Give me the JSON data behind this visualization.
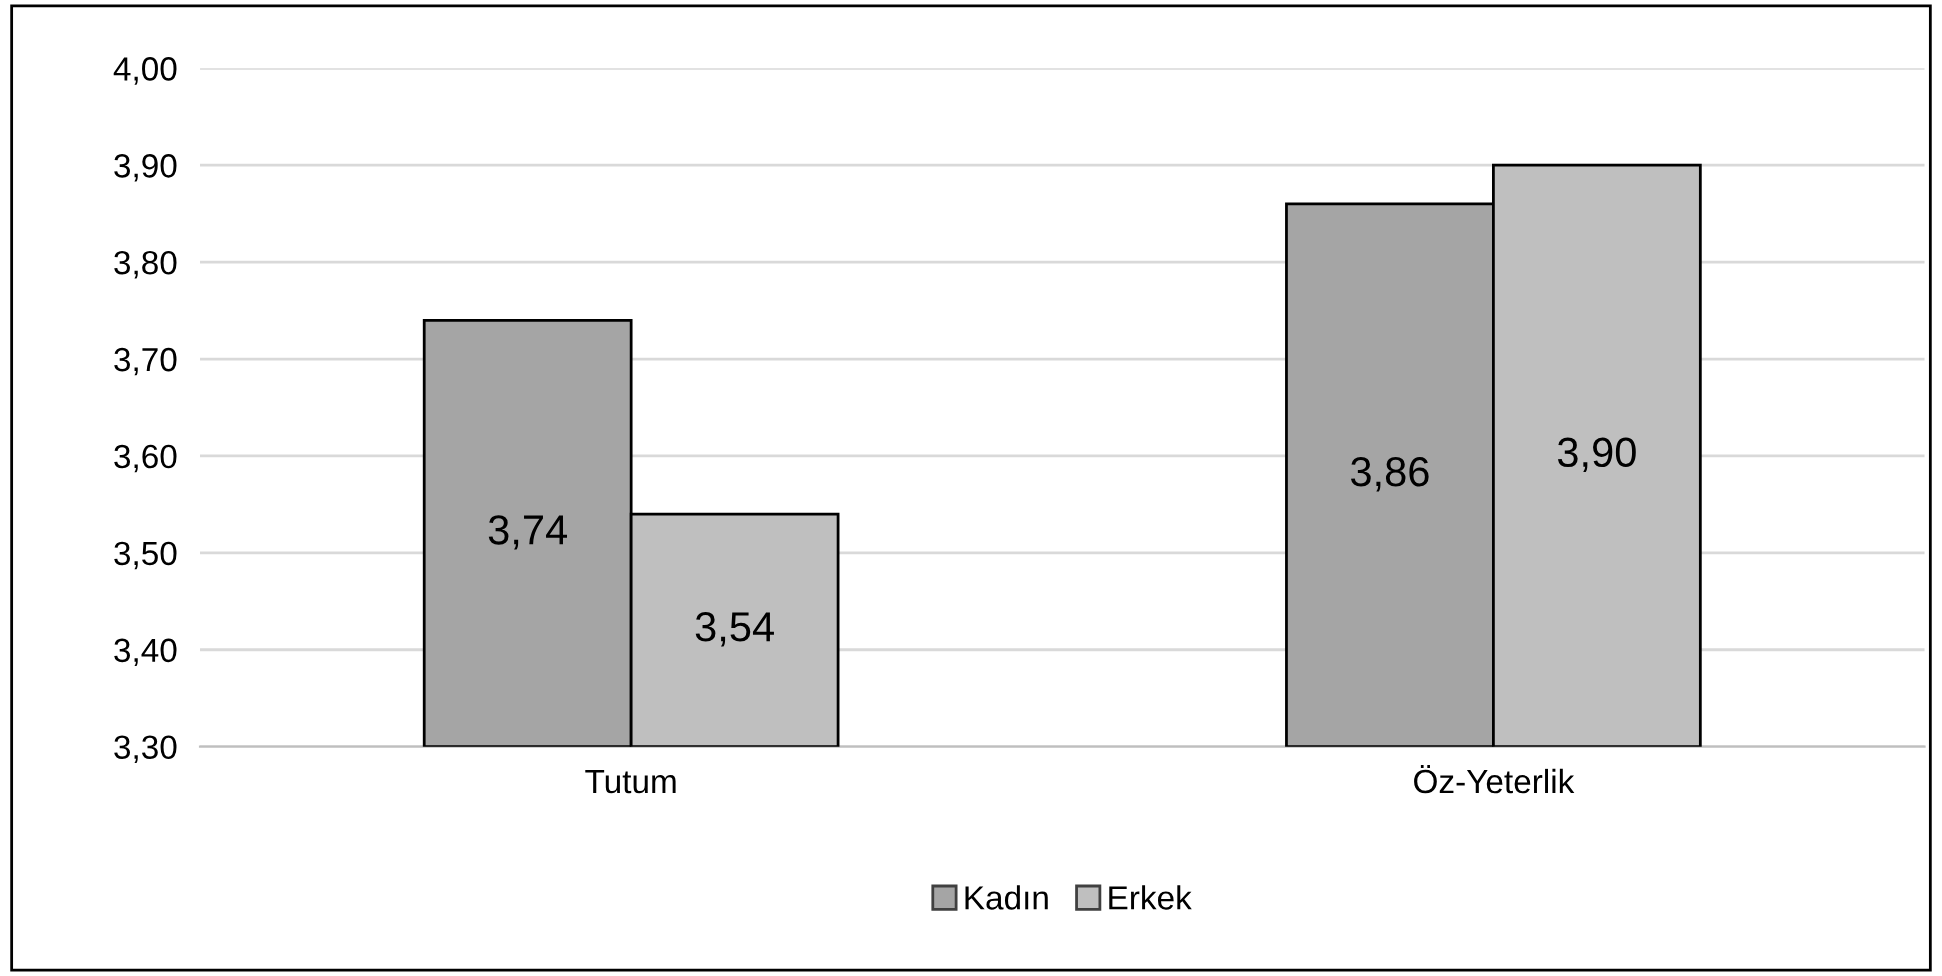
{
  "chart_data": {
    "type": "bar",
    "categories": [
      "Tutum",
      "Öz-Yeterlik"
    ],
    "series": [
      {
        "name": "Kadın",
        "color": "#a5a5a5",
        "values": [
          3.74,
          3.86
        ],
        "value_labels": [
          "3,74",
          "3,86"
        ]
      },
      {
        "name": "Erkek",
        "color": "#bfbfbf",
        "values": [
          3.54,
          3.9
        ],
        "value_labels": [
          "3,54",
          "3,90"
        ]
      }
    ],
    "ylim": [
      3.3,
      4.0
    ],
    "yticks": [
      {
        "value": 3.3,
        "label": "3,30"
      },
      {
        "value": 3.4,
        "label": "3,40"
      },
      {
        "value": 3.5,
        "label": "3,50"
      },
      {
        "value": 3.6,
        "label": "3,60"
      },
      {
        "value": 3.7,
        "label": "3,70"
      },
      {
        "value": 3.8,
        "label": "3,80"
      },
      {
        "value": 3.9,
        "label": "3,90"
      },
      {
        "value": 4.0,
        "label": "4,00"
      }
    ],
    "grid": "y",
    "legend": "bottom"
  }
}
